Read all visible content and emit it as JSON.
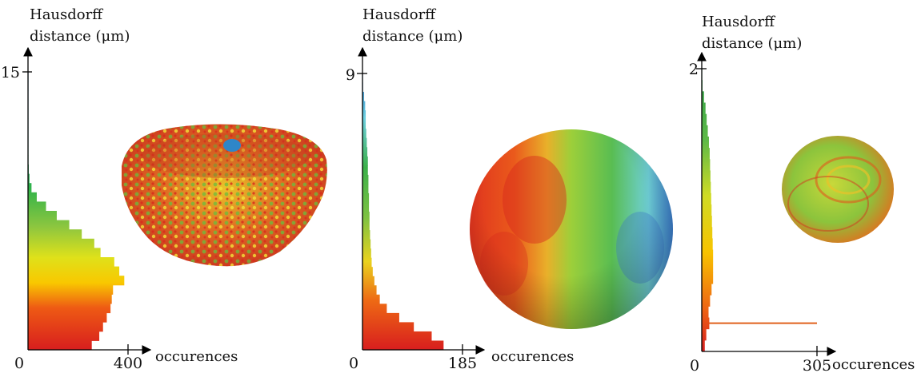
{
  "chart_data": [
    {
      "type": "bar",
      "orientation": "horizontal-histogram",
      "title": "",
      "ylabel": "Hausdorff distance (μm)",
      "xlabel": "occurences",
      "ylim": [
        0,
        15
      ],
      "xlim": [
        0,
        400
      ],
      "y_ticks": [
        "15"
      ],
      "x_ticks": [
        "0",
        "400"
      ],
      "distance": [
        0.0,
        0.5,
        1.0,
        1.5,
        2.0,
        2.5,
        3.0,
        3.5,
        4.0,
        4.5,
        5.0,
        5.5,
        6.0,
        6.5,
        7.0,
        7.5,
        8.0,
        8.5,
        9.0,
        9.5,
        10.0,
        10.5,
        11.0,
        11.5,
        12.0,
        12.5,
        13.0,
        13.5,
        14.0,
        14.5
      ],
      "values": [
        255,
        285,
        300,
        315,
        330,
        335,
        340,
        385,
        365,
        345,
        290,
        265,
        215,
        165,
        115,
        72,
        35,
        14,
        6,
        3,
        2,
        1,
        1,
        1,
        1,
        0,
        0,
        1,
        0,
        0
      ]
    },
    {
      "type": "bar",
      "orientation": "horizontal-histogram",
      "title": "",
      "ylabel": "Hausdorff distance (μm)",
      "xlabel": "occurences",
      "ylim": [
        0,
        9
      ],
      "xlim": [
        0,
        185
      ],
      "y_ticks": [
        "9"
      ],
      "x_ticks": [
        "0",
        "185"
      ],
      "distance": [
        0.0,
        0.3,
        0.6,
        0.9,
        1.2,
        1.5,
        1.8,
        2.1,
        2.4,
        2.7,
        3.0,
        3.3,
        3.6,
        3.9,
        4.2,
        4.5,
        4.8,
        5.1,
        5.4,
        5.7,
        6.0,
        6.3,
        6.6,
        6.9,
        7.2,
        7.5,
        7.8,
        8.1,
        8.4,
        8.7
      ],
      "values": [
        150,
        128,
        95,
        68,
        45,
        32,
        26,
        22,
        19,
        17,
        16,
        15,
        14,
        13,
        13,
        12,
        12,
        11,
        11,
        10,
        10,
        9,
        8,
        7,
        6,
        6,
        5,
        3,
        1,
        0
      ]
    },
    {
      "type": "bar",
      "orientation": "horizontal-histogram",
      "title": "",
      "ylabel": "Hausdorff distance (μm)",
      "xlabel": "occurences",
      "ylim": [
        0,
        2
      ],
      "xlim": [
        0,
        305
      ],
      "y_ticks": [
        "2"
      ],
      "x_ticks": [
        "0",
        "305"
      ],
      "distance": [
        0.0,
        0.08,
        0.16,
        0.24,
        0.32,
        0.4,
        0.48,
        0.56,
        0.64,
        0.72,
        0.8,
        0.88,
        0.96,
        1.04,
        1.12,
        1.2,
        1.28,
        1.36,
        1.44,
        1.52,
        1.6,
        1.68,
        1.76,
        1.84,
        1.92
      ],
      "values": [
        8,
        12,
        305,
        18,
        22,
        26,
        30,
        30,
        30,
        29,
        28,
        27,
        26,
        25,
        24,
        23,
        22,
        21,
        19,
        16,
        13,
        10,
        6,
        2,
        0
      ]
    }
  ]
}
